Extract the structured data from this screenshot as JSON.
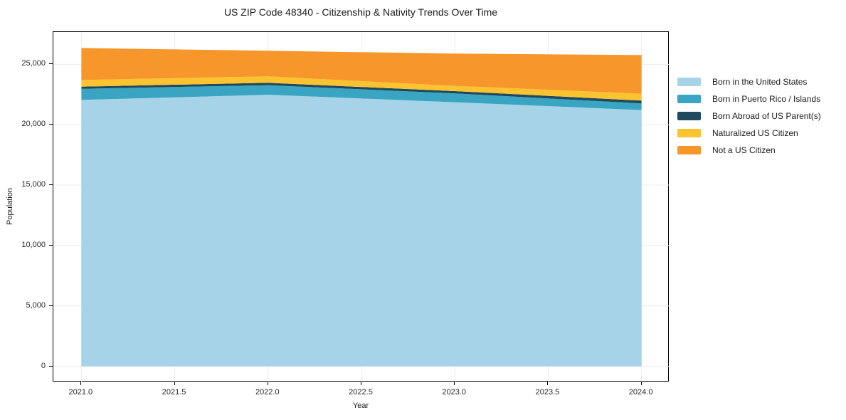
{
  "title": "US ZIP Code 48340 - Citizenship & Nativity Trends Over Time",
  "xlabel": "Year",
  "ylabel": "Population",
  "chart_data": {
    "type": "area",
    "stacked": true,
    "title": "US ZIP Code 48340 - Citizenship & Nativity Trends Over Time",
    "xlabel": "Year",
    "ylabel": "Population",
    "x": [
      2021,
      2022,
      2023,
      2024
    ],
    "series": [
      {
        "name": "Born in the United States",
        "color": "#a7d3e8",
        "values": [
          22050,
          22480,
          21860,
          21210
        ]
      },
      {
        "name": "Born in Puerto Rico / Islands",
        "color": "#3aa5c2",
        "values": [
          925,
          790,
          725,
          550
        ]
      },
      {
        "name": "Born Abroad of US Parent(s)",
        "color": "#1f4a5e",
        "values": [
          175,
          200,
          195,
          235
        ]
      },
      {
        "name": "Naturalized US Citizen",
        "color": "#fcc331",
        "values": [
          550,
          530,
          435,
          570
        ]
      },
      {
        "name": "Not a US Citizen",
        "color": "#f7962b",
        "values": [
          2650,
          2120,
          2670,
          3200
        ]
      }
    ],
    "totals": [
      26350,
      26120,
      25885,
      25765
    ],
    "xlim": [
      2020.85,
      2024.15
    ],
    "ylim": [
      -1320,
      27670
    ],
    "xticks": {
      "values": [
        2021.0,
        2021.5,
        2022.0,
        2022.5,
        2023.0,
        2023.5,
        2024.0
      ],
      "labels": [
        "2021.0",
        "2021.5",
        "2022.0",
        "2022.5",
        "2023.0",
        "2023.5",
        "2024.0"
      ]
    },
    "yticks": {
      "values": [
        0,
        5000,
        10000,
        15000,
        20000,
        25000
      ],
      "labels": [
        "0",
        "5,000",
        "10,000",
        "15,000",
        "20,000",
        "25,000"
      ]
    },
    "grid": true,
    "grid_color": "#ececec",
    "legend_position": "outside-right",
    "spine_color": "#000000",
    "background_color": "#ffffff"
  }
}
